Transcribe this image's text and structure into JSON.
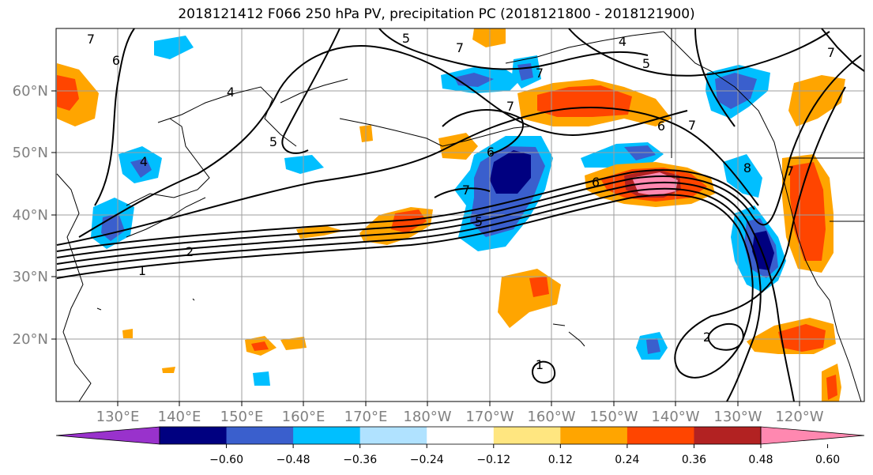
{
  "title": "2018121412 F066 250 hPa PV, precipitation PC (2018121800 - 2018121900)",
  "map": {
    "lon_labels": [
      "130°E",
      "140°E",
      "150°E",
      "160°E",
      "170°E",
      "180°W",
      "170°W",
      "160°W",
      "150°W",
      "140°W",
      "130°W",
      "120°W"
    ],
    "lat_labels": [
      "60°N",
      "50°N",
      "40°N",
      "30°N",
      "20°N"
    ],
    "contour_labels": [
      {
        "text": "6"
      },
      {
        "text": "4"
      },
      {
        "text": "5"
      },
      {
        "text": "5"
      },
      {
        "text": "4"
      },
      {
        "text": "5"
      },
      {
        "text": "7"
      },
      {
        "text": "6"
      },
      {
        "text": "7"
      },
      {
        "text": "7"
      },
      {
        "text": "4"
      },
      {
        "text": "6"
      },
      {
        "text": "7"
      },
      {
        "text": "5"
      },
      {
        "text": "6"
      },
      {
        "text": "1"
      },
      {
        "text": "2"
      },
      {
        "text": "8"
      },
      {
        "text": "2"
      },
      {
        "text": "1"
      },
      {
        "text": "7"
      },
      {
        "text": "7"
      },
      {
        "text": "7"
      },
      {
        "text": "7"
      }
    ]
  },
  "colorbar": {
    "colors": [
      "#9932cc",
      "#000080",
      "#3a5fcd",
      "#00bfff",
      "#b0e2ff",
      "#ffffff",
      "#ffe680",
      "#ffa500",
      "#ff4500",
      "#b22222",
      "#ff88b0"
    ],
    "tick_labels": [
      "−0.60",
      "−0.48",
      "−0.36",
      "−0.24",
      "−0.12",
      "0.12",
      "0.24",
      "0.36",
      "0.48",
      "0.60"
    ]
  }
}
